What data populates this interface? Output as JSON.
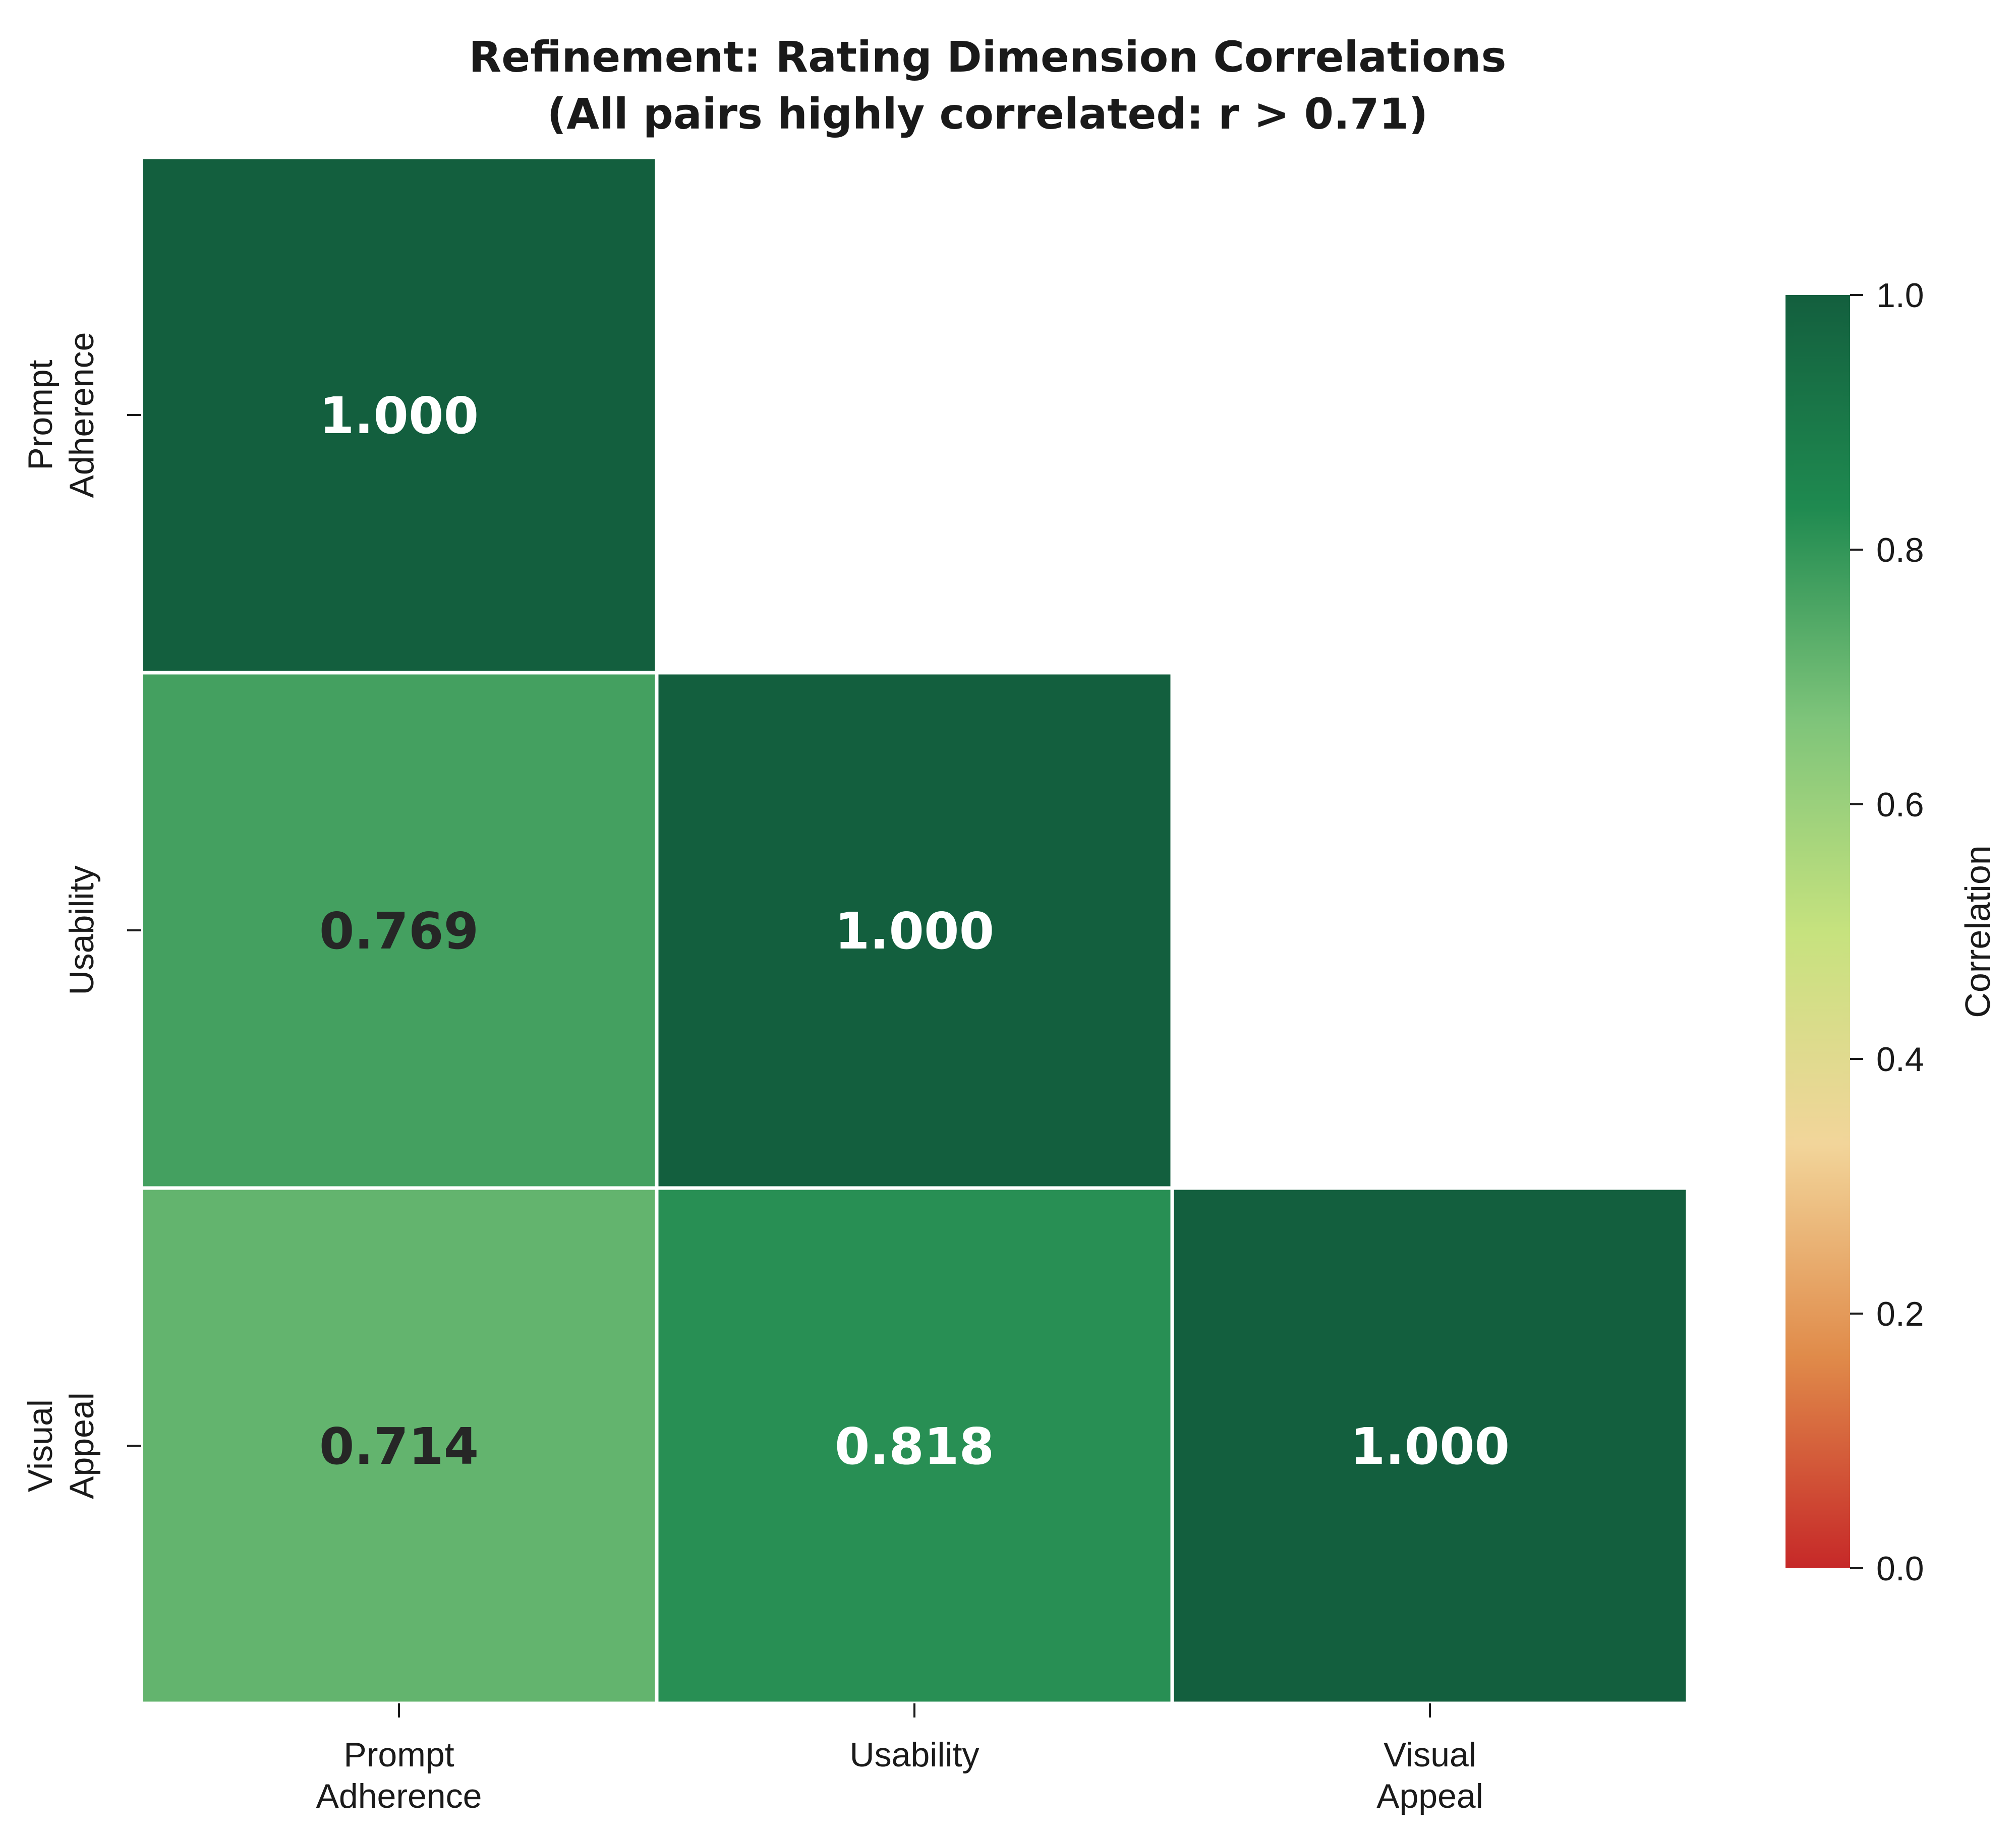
{
  "chart_data": {
    "type": "heatmap",
    "title": "Refinement: Rating Dimension Correlations",
    "subtitle": "(All pairs highly correlated: r > 0.71)",
    "categories": [
      "Prompt\nAdherence",
      "Usability",
      "Visual\nAppeal"
    ],
    "mask": "upper-triangle",
    "matrix": [
      [
        1.0,
        null,
        null
      ],
      [
        0.769,
        1.0,
        null
      ],
      [
        0.714,
        0.818,
        1.0
      ]
    ],
    "cell_labels": [
      [
        "1.000",
        null,
        null
      ],
      [
        "0.769",
        "1.000",
        null
      ],
      [
        "0.714",
        "0.818",
        "1.000"
      ]
    ],
    "colorbar": {
      "label": "Correlation",
      "range": [
        0,
        1
      ],
      "ticks": [
        "0.0",
        "0.2",
        "0.4",
        "0.6",
        "0.8",
        "1.0"
      ],
      "colormap": "RdYlGn",
      "stops": [
        "#c62828",
        "#e08b4a",
        "#f2d59a",
        "#c6e27e",
        "#7ec47a",
        "#1f8a50",
        "#135f3e"
      ]
    }
  }
}
